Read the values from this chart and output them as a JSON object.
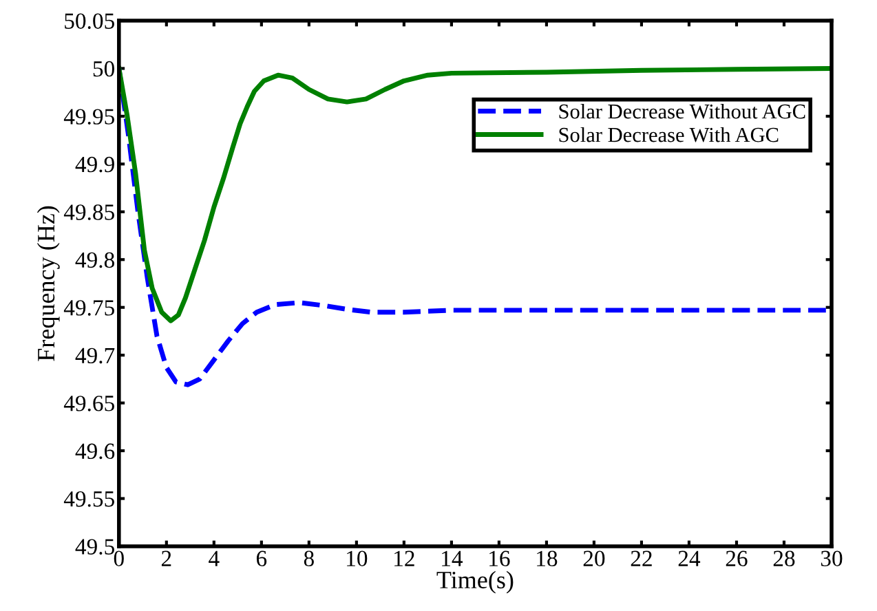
{
  "chart_data": {
    "type": "line",
    "xlabel": "Time(s)",
    "ylabel": "Frequency (Hz)",
    "xlim": [
      0,
      30
    ],
    "ylim": [
      49.5,
      50.05
    ],
    "xticks": [
      0,
      2,
      4,
      6,
      8,
      10,
      12,
      14,
      16,
      18,
      20,
      22,
      24,
      26,
      28,
      30
    ],
    "yticks": [
      49.5,
      49.55,
      49.6,
      49.65,
      49.7,
      49.75,
      49.8,
      49.85,
      49.9,
      49.95,
      50,
      50.05
    ],
    "grid": false,
    "legend": "top right",
    "series": [
      {
        "name": "Solar Decrease Without AGC",
        "color": "#0000ff",
        "line_style": "dashed",
        "x": [
          0,
          0.4,
          0.8,
          1.2,
          1.6,
          2.0,
          2.4,
          2.9,
          3.4,
          4.0,
          4.6,
          5.2,
          5.8,
          6.6,
          7.6,
          8.6,
          9.6,
          10.6,
          12,
          14,
          16,
          20,
          25,
          30
        ],
        "values": [
          50,
          49.93,
          49.85,
          49.78,
          49.72,
          49.687,
          49.672,
          49.669,
          49.675,
          49.695,
          49.715,
          49.733,
          49.745,
          49.753,
          49.755,
          49.752,
          49.748,
          49.745,
          49.745,
          49.747,
          49.747,
          49.747,
          49.747,
          49.747
        ]
      },
      {
        "name": "Solar Decrease With AGC",
        "color": "#008000",
        "line_style": "solid",
        "x": [
          0,
          0.35,
          0.7,
          1.07,
          1.4,
          1.8,
          2.18,
          2.5,
          2.8,
          3.2,
          3.6,
          4.0,
          4.4,
          4.8,
          5.1,
          5.4,
          5.7,
          6.1,
          6.7,
          7.3,
          8.0,
          8.8,
          9.6,
          10.4,
          11.2,
          12,
          13,
          14,
          18,
          22,
          26,
          30
        ],
        "values": [
          50,
          49.95,
          49.89,
          49.81,
          49.77,
          49.745,
          49.736,
          49.742,
          49.76,
          49.79,
          49.82,
          49.855,
          49.885,
          49.918,
          49.942,
          49.96,
          49.976,
          49.987,
          49.993,
          49.99,
          49.978,
          49.968,
          49.965,
          49.968,
          49.978,
          49.987,
          49.993,
          49.995,
          49.996,
          49.998,
          49.999,
          50
        ]
      }
    ]
  }
}
